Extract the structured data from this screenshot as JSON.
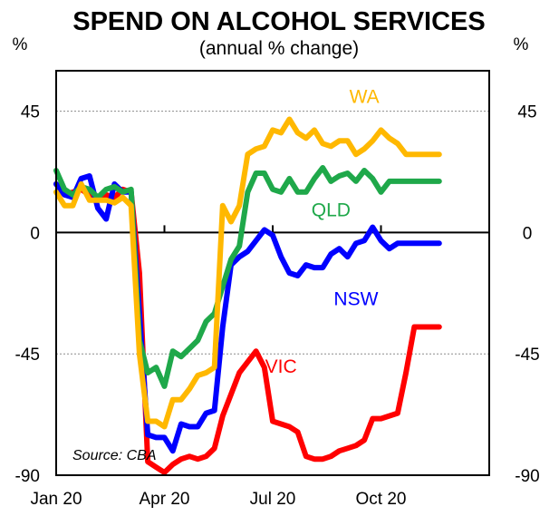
{
  "chart_data": {
    "type": "line",
    "title": "SPEND ON ALCOHOL SERVICES",
    "subtitle": "(annual % change)",
    "ylabel_left": "%",
    "ylabel_right": "%",
    "ylim": [
      -90,
      60
    ],
    "yticks": [
      45,
      0,
      -45,
      -90
    ],
    "ytick_labels": [
      "45",
      "0",
      "-45",
      "-90"
    ],
    "xlim": [
      0,
      52
    ],
    "xticks": [
      0,
      13,
      26,
      39
    ],
    "xtick_labels": [
      "Jan 20",
      "Apr 20",
      "Jul 20",
      "Oct 20"
    ],
    "source": "Source: CBA",
    "series": [
      {
        "name": "VIC",
        "color": "#ff0000",
        "x": [
          0,
          1,
          2,
          3,
          4,
          5,
          6,
          7,
          8,
          9,
          10,
          11,
          12,
          13,
          14,
          15,
          16,
          17,
          18,
          19,
          20,
          21,
          22,
          23,
          24,
          25,
          26,
          27,
          28,
          29,
          30,
          31,
          32,
          33,
          34,
          35,
          36,
          37,
          38,
          39,
          40,
          41,
          42,
          43,
          44,
          45,
          46
        ],
        "values": [
          18,
          14,
          15,
          16,
          14,
          12,
          14,
          13,
          16,
          15,
          -15,
          -85,
          -87,
          -89,
          -86,
          -84,
          -83,
          -84,
          -83,
          -80,
          -68,
          -60,
          -52,
          -48,
          -44,
          -50,
          -70,
          -71,
          -72,
          -74,
          -83,
          -84,
          -84,
          -83,
          -81,
          -80,
          -79,
          -77,
          -69,
          -69,
          -68,
          -67,
          -52,
          -35,
          -35,
          -35,
          -35
        ]
      },
      {
        "name": "NSW",
        "color": "#0000ff",
        "x": [
          0,
          1,
          2,
          3,
          4,
          5,
          6,
          7,
          8,
          9,
          10,
          11,
          12,
          13,
          14,
          15,
          16,
          17,
          18,
          19,
          20,
          21,
          22,
          23,
          24,
          25,
          26,
          27,
          28,
          29,
          30,
          31,
          32,
          33,
          34,
          35,
          36,
          37,
          38,
          39,
          40,
          41,
          42,
          43,
          44,
          45,
          46
        ],
        "values": [
          18,
          14,
          13,
          20,
          21,
          9,
          5,
          18,
          15,
          15,
          -30,
          -75,
          -76,
          -76,
          -81,
          -71,
          -72,
          -72,
          -67,
          -66,
          -35,
          -12,
          -9,
          -7,
          -3,
          1,
          -1,
          -9,
          -15,
          -16,
          -12,
          -13,
          -13,
          -8,
          -6,
          -9,
          -4,
          -3,
          2,
          -3,
          -6,
          -4,
          -4,
          -4,
          -4,
          -4,
          -4
        ]
      },
      {
        "name": "QLD",
        "color": "#1fa84a",
        "x": [
          0,
          1,
          2,
          3,
          4,
          5,
          6,
          7,
          8,
          9,
          10,
          11,
          12,
          13,
          14,
          15,
          16,
          17,
          18,
          19,
          20,
          21,
          22,
          23,
          24,
          25,
          26,
          27,
          28,
          29,
          30,
          31,
          32,
          33,
          34,
          35,
          36,
          37,
          38,
          39,
          40,
          41,
          42,
          43,
          44,
          45,
          46
        ],
        "values": [
          23,
          16,
          14,
          17,
          16,
          13,
          16,
          17,
          15,
          16,
          -40,
          -52,
          -50,
          -57,
          -44,
          -46,
          -43,
          -40,
          -33,
          -30,
          -20,
          -10,
          -5,
          15,
          22,
          22,
          16,
          15,
          20,
          15,
          15,
          20,
          24,
          19,
          21,
          22,
          19,
          23,
          20,
          15,
          19,
          19,
          19,
          19,
          19,
          19,
          19
        ]
      },
      {
        "name": "WA",
        "color": "#ffb800",
        "x": [
          0,
          1,
          2,
          3,
          4,
          5,
          6,
          7,
          8,
          9,
          10,
          11,
          12,
          13,
          14,
          15,
          16,
          17,
          18,
          19,
          20,
          21,
          22,
          23,
          24,
          25,
          26,
          27,
          28,
          29,
          30,
          31,
          32,
          33,
          34,
          35,
          36,
          37,
          38,
          39,
          40,
          41,
          42,
          43,
          44,
          45,
          46
        ],
        "values": [
          15,
          10,
          10,
          18,
          12,
          12,
          12,
          11,
          13,
          10,
          -45,
          -70,
          -70,
          -72,
          -62,
          -62,
          -58,
          -53,
          -52,
          -50,
          10,
          4,
          10,
          29,
          31,
          32,
          38,
          37,
          42,
          37,
          35,
          38,
          33,
          32,
          34,
          34,
          29,
          31,
          34,
          38,
          35,
          33,
          29,
          29,
          29,
          29,
          29
        ]
      }
    ]
  }
}
